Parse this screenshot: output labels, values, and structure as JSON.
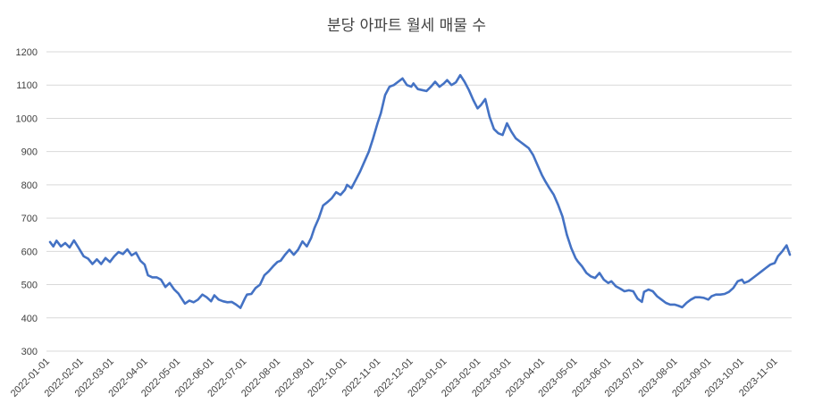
{
  "chart_data": {
    "type": "line",
    "title": "분당 아파트 월세 매물 수",
    "xlabel": "",
    "ylabel": "",
    "ylim": [
      300,
      1200
    ],
    "yticks": [
      300,
      400,
      500,
      600,
      700,
      800,
      900,
      1000,
      1100,
      1200
    ],
    "x_tick_labels": [
      "2022-01-01",
      "2022-02-01",
      "2022-03-01",
      "2022-04-01",
      "2022-05-01",
      "2022-06-01",
      "2022-07-01",
      "2022-08-01",
      "2022-09-01",
      "2022-10-01",
      "2022-11-01",
      "2022-12-01",
      "2023-01-01",
      "2023-02-01",
      "2023-03-01",
      "2023-04-01",
      "2023-05-01",
      "2023-06-01",
      "2023-07-01",
      "2023-08-01",
      "2023-09-01",
      "2023-10-01",
      "2023-11-01"
    ],
    "grid": "horizontal",
    "legend": "none",
    "series": [
      {
        "color": "#4472c4",
        "points": [
          [
            "2022-01-01",
            628
          ],
          [
            "2022-01-04",
            615
          ],
          [
            "2022-01-07",
            632
          ],
          [
            "2022-01-11",
            615
          ],
          [
            "2022-01-15",
            625
          ],
          [
            "2022-01-19",
            612
          ],
          [
            "2022-01-23",
            633
          ],
          [
            "2022-01-27",
            612
          ],
          [
            "2022-02-01",
            585
          ],
          [
            "2022-02-05",
            578
          ],
          [
            "2022-02-09",
            562
          ],
          [
            "2022-02-13",
            576
          ],
          [
            "2022-02-17",
            562
          ],
          [
            "2022-02-21",
            580
          ],
          [
            "2022-02-25",
            568
          ],
          [
            "2022-03-01",
            585
          ],
          [
            "2022-03-05",
            598
          ],
          [
            "2022-03-09",
            592
          ],
          [
            "2022-03-13",
            606
          ],
          [
            "2022-03-17",
            588
          ],
          [
            "2022-03-21",
            596
          ],
          [
            "2022-03-25",
            572
          ],
          [
            "2022-03-29",
            560
          ],
          [
            "2022-04-01",
            528
          ],
          [
            "2022-04-05",
            522
          ],
          [
            "2022-04-09",
            522
          ],
          [
            "2022-04-13",
            515
          ],
          [
            "2022-04-17",
            493
          ],
          [
            "2022-04-21",
            505
          ],
          [
            "2022-04-25",
            486
          ],
          [
            "2022-04-29",
            473
          ],
          [
            "2022-05-01",
            463
          ],
          [
            "2022-05-05",
            443
          ],
          [
            "2022-05-09",
            452
          ],
          [
            "2022-05-13",
            447
          ],
          [
            "2022-05-17",
            455
          ],
          [
            "2022-05-21",
            470
          ],
          [
            "2022-05-25",
            462
          ],
          [
            "2022-05-29",
            450
          ],
          [
            "2022-06-01",
            468
          ],
          [
            "2022-06-05",
            455
          ],
          [
            "2022-06-09",
            450
          ],
          [
            "2022-06-13",
            447
          ],
          [
            "2022-06-17",
            448
          ],
          [
            "2022-06-21",
            440
          ],
          [
            "2022-06-25",
            430
          ],
          [
            "2022-06-29",
            458
          ],
          [
            "2022-07-01",
            470
          ],
          [
            "2022-07-05",
            472
          ],
          [
            "2022-07-09",
            490
          ],
          [
            "2022-07-13",
            500
          ],
          [
            "2022-07-17",
            528
          ],
          [
            "2022-07-21",
            540
          ],
          [
            "2022-07-25",
            555
          ],
          [
            "2022-07-29",
            568
          ],
          [
            "2022-08-01",
            572
          ],
          [
            "2022-08-05",
            590
          ],
          [
            "2022-08-09",
            605
          ],
          [
            "2022-08-13",
            590
          ],
          [
            "2022-08-17",
            605
          ],
          [
            "2022-08-21",
            630
          ],
          [
            "2022-08-25",
            615
          ],
          [
            "2022-08-29",
            640
          ],
          [
            "2022-09-01",
            670
          ],
          [
            "2022-09-05",
            700
          ],
          [
            "2022-09-09",
            738
          ],
          [
            "2022-09-13",
            748
          ],
          [
            "2022-09-17",
            760
          ],
          [
            "2022-09-21",
            778
          ],
          [
            "2022-09-25",
            770
          ],
          [
            "2022-09-29",
            785
          ],
          [
            "2022-10-01",
            800
          ],
          [
            "2022-10-05",
            790
          ],
          [
            "2022-10-09",
            815
          ],
          [
            "2022-10-13",
            840
          ],
          [
            "2022-10-17",
            870
          ],
          [
            "2022-10-21",
            900
          ],
          [
            "2022-10-25",
            940
          ],
          [
            "2022-10-29",
            985
          ],
          [
            "2022-11-01",
            1015
          ],
          [
            "2022-11-05",
            1070
          ],
          [
            "2022-11-09",
            1095
          ],
          [
            "2022-11-13",
            1100
          ],
          [
            "2022-11-17",
            1110
          ],
          [
            "2022-11-21",
            1120
          ],
          [
            "2022-11-25",
            1100
          ],
          [
            "2022-11-29",
            1095
          ],
          [
            "2022-12-01",
            1105
          ],
          [
            "2022-12-05",
            1088
          ],
          [
            "2022-12-09",
            1085
          ],
          [
            "2022-12-13",
            1082
          ],
          [
            "2022-12-17",
            1095
          ],
          [
            "2022-12-21",
            1110
          ],
          [
            "2022-12-25",
            1095
          ],
          [
            "2022-12-29",
            1105
          ],
          [
            "2023-01-01",
            1115
          ],
          [
            "2023-01-05",
            1100
          ],
          [
            "2023-01-09",
            1108
          ],
          [
            "2023-01-13",
            1130
          ],
          [
            "2023-01-17",
            1110
          ],
          [
            "2023-01-21",
            1085
          ],
          [
            "2023-01-25",
            1055
          ],
          [
            "2023-01-29",
            1030
          ],
          [
            "2023-02-01",
            1040
          ],
          [
            "2023-02-05",
            1058
          ],
          [
            "2023-02-09",
            1005
          ],
          [
            "2023-02-13",
            968
          ],
          [
            "2023-02-17",
            955
          ],
          [
            "2023-02-21",
            950
          ],
          [
            "2023-02-25",
            985
          ],
          [
            "2023-03-01",
            960
          ],
          [
            "2023-03-05",
            940
          ],
          [
            "2023-03-09",
            930
          ],
          [
            "2023-03-13",
            920
          ],
          [
            "2023-03-17",
            910
          ],
          [
            "2023-03-21",
            890
          ],
          [
            "2023-03-25",
            860
          ],
          [
            "2023-03-29",
            830
          ],
          [
            "2023-04-01",
            812
          ],
          [
            "2023-04-05",
            790
          ],
          [
            "2023-04-09",
            770
          ],
          [
            "2023-04-13",
            740
          ],
          [
            "2023-04-17",
            705
          ],
          [
            "2023-04-21",
            650
          ],
          [
            "2023-04-25",
            610
          ],
          [
            "2023-04-29",
            580
          ],
          [
            "2023-05-01",
            570
          ],
          [
            "2023-05-05",
            555
          ],
          [
            "2023-05-09",
            535
          ],
          [
            "2023-05-13",
            525
          ],
          [
            "2023-05-17",
            520
          ],
          [
            "2023-05-21",
            535
          ],
          [
            "2023-05-25",
            515
          ],
          [
            "2023-05-29",
            505
          ],
          [
            "2023-06-01",
            510
          ],
          [
            "2023-06-05",
            495
          ],
          [
            "2023-06-09",
            488
          ],
          [
            "2023-06-13",
            480
          ],
          [
            "2023-06-17",
            483
          ],
          [
            "2023-06-21",
            480
          ],
          [
            "2023-06-25",
            458
          ],
          [
            "2023-06-29",
            448
          ],
          [
            "2023-07-01",
            478
          ],
          [
            "2023-07-05",
            485
          ],
          [
            "2023-07-09",
            480
          ],
          [
            "2023-07-13",
            465
          ],
          [
            "2023-07-17",
            455
          ],
          [
            "2023-07-21",
            445
          ],
          [
            "2023-07-25",
            440
          ],
          [
            "2023-07-29",
            440
          ],
          [
            "2023-08-01",
            437
          ],
          [
            "2023-08-05",
            432
          ],
          [
            "2023-08-09",
            445
          ],
          [
            "2023-08-13",
            455
          ],
          [
            "2023-08-17",
            462
          ],
          [
            "2023-08-21",
            462
          ],
          [
            "2023-08-25",
            460
          ],
          [
            "2023-08-29",
            455
          ],
          [
            "2023-09-01",
            465
          ],
          [
            "2023-09-05",
            470
          ],
          [
            "2023-09-09",
            470
          ],
          [
            "2023-09-13",
            472
          ],
          [
            "2023-09-17",
            478
          ],
          [
            "2023-09-21",
            490
          ],
          [
            "2023-09-25",
            510
          ],
          [
            "2023-09-29",
            515
          ],
          [
            "2023-10-01",
            505
          ],
          [
            "2023-10-05",
            510
          ],
          [
            "2023-10-09",
            520
          ],
          [
            "2023-10-13",
            530
          ],
          [
            "2023-10-17",
            540
          ],
          [
            "2023-10-21",
            550
          ],
          [
            "2023-10-25",
            560
          ],
          [
            "2023-10-29",
            565
          ],
          [
            "2023-11-01",
            585
          ],
          [
            "2023-11-05",
            600
          ],
          [
            "2023-11-09",
            618
          ],
          [
            "2023-11-12",
            590
          ]
        ]
      }
    ]
  }
}
